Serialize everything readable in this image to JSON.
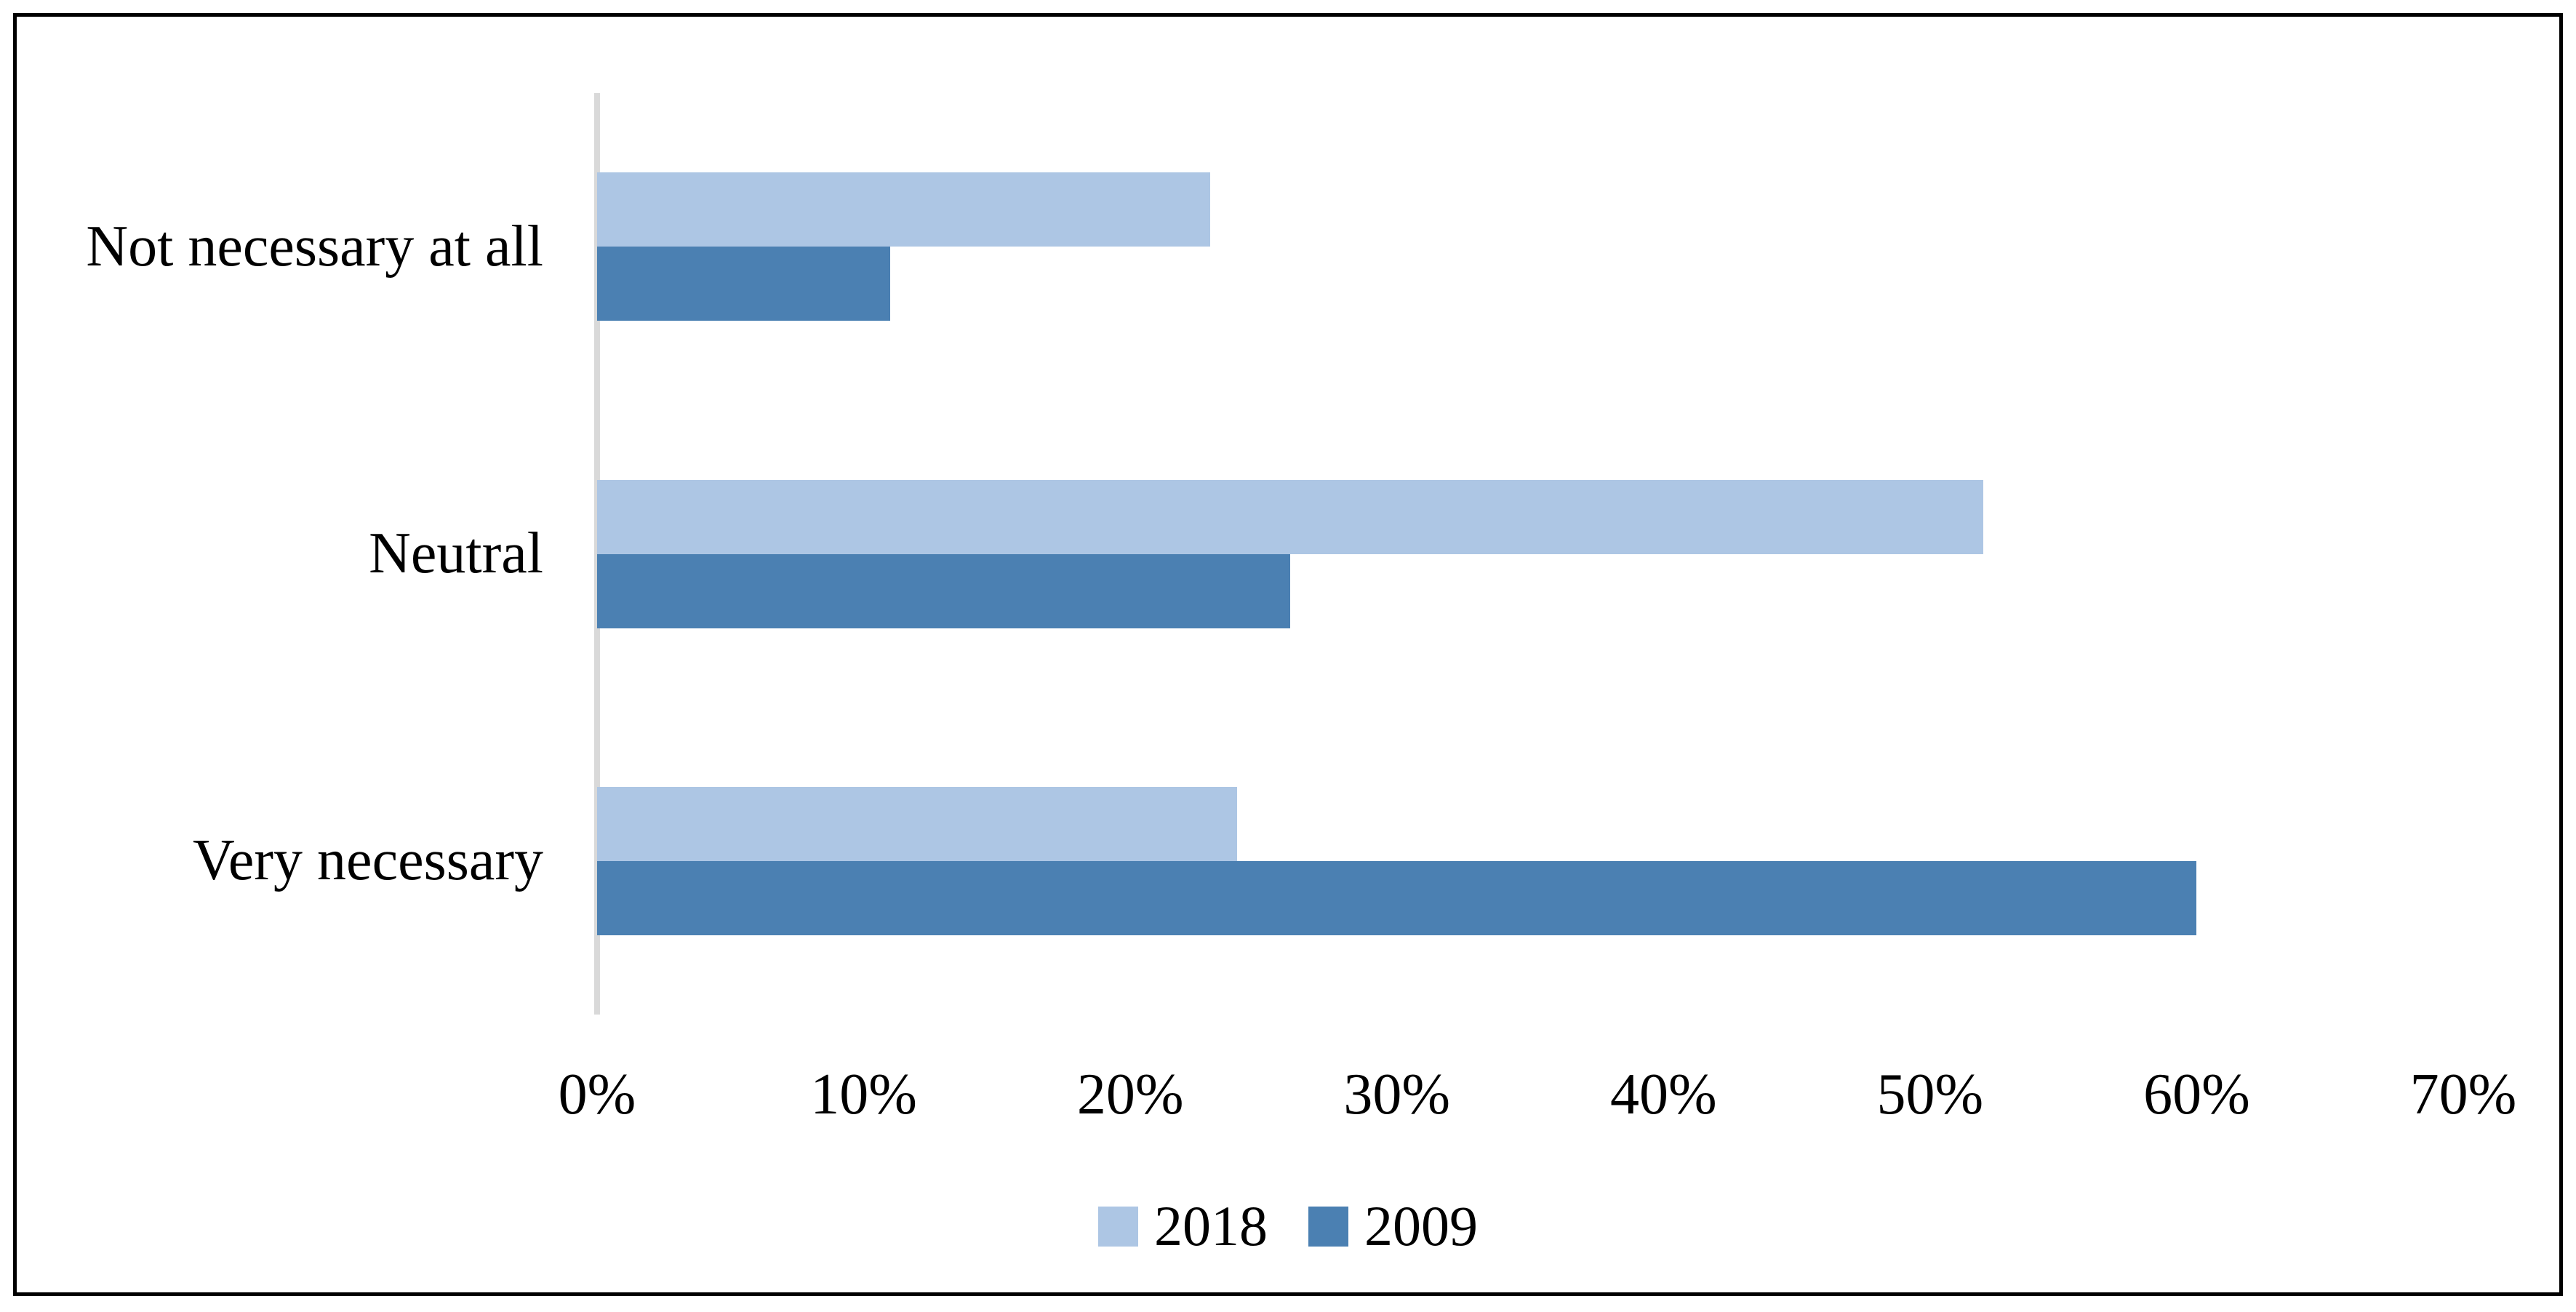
{
  "chart_data": {
    "type": "bar",
    "orientation": "horizontal",
    "title": "",
    "xlabel": "",
    "ylabel": "",
    "categories": [
      "Not necessary at all",
      "Neutral",
      "Very necessary"
    ],
    "series": [
      {
        "name": "2018",
        "color": "#ADC6E4",
        "values": [
          23,
          52,
          24
        ]
      },
      {
        "name": "2009",
        "color": "#4B80B2",
        "values": [
          11,
          26,
          60
        ]
      }
    ],
    "value_unit": "%",
    "xlim": [
      0,
      70
    ],
    "x_ticks": [
      "0%",
      "10%",
      "20%",
      "30%",
      "40%",
      "50%",
      "60%",
      "70%"
    ],
    "grid": false,
    "legend_position": "bottom-center",
    "axis_line_color": "#D9D9D9",
    "frame_color": "#000000",
    "background_color": "#ffffff",
    "text_color": "#000000"
  }
}
